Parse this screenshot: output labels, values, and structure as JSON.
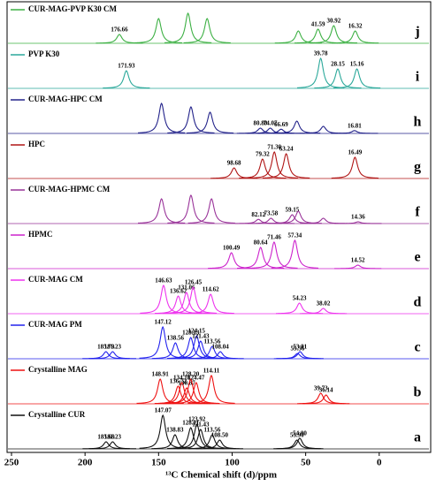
{
  "chart_data": {
    "type": "spectrum",
    "x_label": "¹³C Chemical shift (d)/ppm",
    "xlim": [
      250,
      -35
    ],
    "xticks": [
      250,
      200,
      150,
      100,
      50,
      0
    ],
    "series": [
      {
        "name": "CUR-MAG-PVP K30 CM",
        "panel": "j",
        "color": "#3cb043",
        "x": [
          176.66,
          150,
          130,
          117,
          55,
          41.59,
          30.92,
          16.32
        ],
        "values": [
          0.25,
          0.7,
          0.85,
          0.7,
          0.35,
          0.4,
          0.5,
          0.35
        ],
        "labeled": [
          true,
          false,
          false,
          false,
          false,
          true,
          true,
          true
        ]
      },
      {
        "name": "PVP K30",
        "panel": "i",
        "color": "#2aa89a",
        "x": [
          171.93,
          39.78,
          28.15,
          15.16
        ],
        "values": [
          0.5,
          0.85,
          0.55,
          0.55
        ],
        "labeled": [
          true,
          true,
          true,
          true
        ]
      },
      {
        "name": "CUR-MAG-HPC CM",
        "panel": "h",
        "color": "#22228a",
        "x": [
          148,
          128,
          115,
          {
            "value": 80.8,
            "label": "80.80"
          },
          74.07,
          66.69,
          56,
          38,
          16.81
        ],
        "values": [
          0.85,
          0.75,
          0.6,
          0.15,
          0.15,
          0.12,
          0.35,
          0.2,
          0.08
        ],
        "labeled": [
          false,
          false,
          false,
          true,
          true,
          true,
          false,
          false,
          true
        ]
      },
      {
        "name": "HPC",
        "panel": "g",
        "color": "#b01515",
        "x": [
          98.68,
          79.32,
          {
            "value": 71.3,
            "label": "71.30"
          },
          63.24,
          16.49
        ],
        "values": [
          0.3,
          0.55,
          0.75,
          0.7,
          0.6
        ],
        "labeled": [
          true,
          true,
          true,
          true,
          true
        ]
      },
      {
        "name": "CUR-MAG-HPMC CM",
        "panel": "f",
        "color": "#993399",
        "x": [
          148,
          128,
          114,
          82.12,
          73.58,
          59.15,
          55,
          38,
          14.36
        ],
        "values": [
          0.7,
          0.8,
          0.7,
          0.12,
          0.15,
          0.25,
          0.35,
          0.15,
          0.05
        ],
        "labeled": [
          false,
          false,
          false,
          true,
          true,
          true,
          false,
          false,
          true
        ]
      },
      {
        "name": "HPMC",
        "panel": "e",
        "color": "#cc22cc",
        "x": [
          100.49,
          80.64,
          71.46,
          57.34,
          14.52
        ],
        "values": [
          0.45,
          0.6,
          0.75,
          0.8,
          0.1
        ],
        "labeled": [
          true,
          true,
          true,
          true,
          true
        ]
      },
      {
        "name": "CUR-MAG CM",
        "panel": "d",
        "color": "#ee33ee",
        "x": [
          146.63,
          136.62,
          131.06,
          126.45,
          114.62,
          54.23,
          38.02
        ],
        "values": [
          0.8,
          0.5,
          0.6,
          0.75,
          0.55,
          0.3,
          0.15
        ],
        "labeled": [
          true,
          true,
          true,
          true,
          true,
          true,
          true
        ]
      },
      {
        "name": "CUR-MAG PM",
        "panel": "c",
        "color": "#2222ee",
        "x": [
          185.79,
          181.23,
          147.12,
          138.56,
          128.13,
          124.15,
          121.43,
          113.56,
          108.04,
          55.56,
          53.81
        ],
        "values": [
          0.2,
          0.2,
          0.9,
          0.45,
          0.6,
          0.65,
          0.5,
          0.35,
          0.2,
          0.15,
          0.2
        ],
        "labeled": [
          true,
          true,
          true,
          true,
          true,
          true,
          true,
          true,
          true,
          true,
          true
        ]
      },
      {
        "name": "Crystalline MAG",
        "panel": "b",
        "color": "#ee1111",
        "x": [
          148.91,
          136.72,
          134.18,
          130.87,
          {
            "value": 128.2,
            "label": "128.20"
          },
          124.47,
          114.11,
          39.73,
          36.14
        ],
        "values": [
          0.7,
          0.5,
          0.6,
          0.45,
          0.7,
          0.6,
          0.8,
          0.3,
          0.25
        ],
        "labeled": [
          true,
          true,
          true,
          true,
          true,
          true,
          true,
          true,
          true
        ]
      },
      {
        "name": "Crystalline CUR",
        "panel": "a",
        "color": "#111111",
        "x": [
          185.69,
          181.23,
          147.07,
          138.83,
          128.11,
          123.92,
          121.43,
          113.56,
          {
            "value": 108.5,
            "label": "108.50"
          },
          {
            "value": 55.9,
            "label": "55.90"
          },
          {
            "value": 54,
            "label": "54.00"
          }
        ],
        "values": [
          0.2,
          0.2,
          0.95,
          0.4,
          0.6,
          0.7,
          0.55,
          0.4,
          0.25,
          0.25,
          0.3
        ],
        "labeled": [
          true,
          true,
          true,
          true,
          true,
          true,
          true,
          true,
          true,
          true,
          true
        ]
      }
    ]
  }
}
